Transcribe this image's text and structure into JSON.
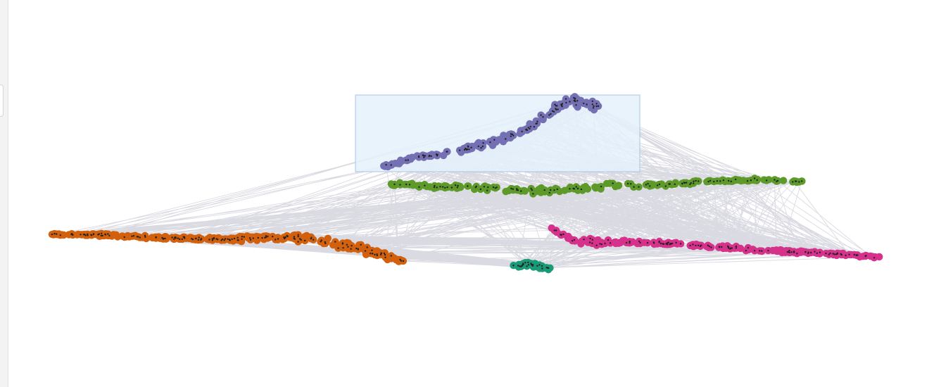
{
  "view": {
    "type": "network-graph",
    "edge_color": "#d3d4dd",
    "node_outline": "#222222"
  },
  "selection_box": {
    "fill": "#e4f1fc",
    "stroke": "#a8c6e6",
    "active": true
  },
  "clusters": [
    {
      "id": "purple",
      "color": "#7570b3",
      "count": 170
    },
    {
      "id": "green",
      "color": "#5e9a2a",
      "count": 190
    },
    {
      "id": "orange",
      "color": "#d2600d",
      "count": 300
    },
    {
      "id": "pink",
      "color": "#d6318b",
      "count": 210
    },
    {
      "id": "teal",
      "color": "#1b9a78",
      "count": 45
    }
  ]
}
